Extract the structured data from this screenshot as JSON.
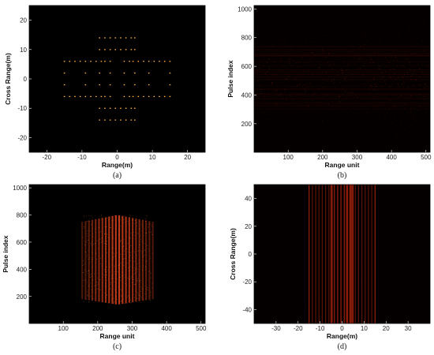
{
  "chart_data": [
    {
      "id": "a",
      "type": "scatter",
      "panel_label": "(a)",
      "xlabel": "Range(m)",
      "ylabel": "Cross Range(m)",
      "xlim": [
        -25,
        25
      ],
      "ylim": [
        -25,
        25
      ],
      "xticks": [
        -20,
        -10,
        0,
        10,
        20
      ],
      "yticks": [
        -20,
        -10,
        0,
        10,
        20
      ],
      "background": "#000000",
      "point_color": "#ffb040",
      "groups": [
        {
          "xs": [
            -5,
            -3.5,
            -2,
            -0.5,
            1,
            2.5,
            4,
            5
          ],
          "y": 14
        },
        {
          "xs": [
            -5,
            -3.5,
            -2,
            -0.5,
            1,
            2.5,
            4,
            5
          ],
          "y": 10
        },
        {
          "xs": [
            -15,
            -13.5,
            -12,
            -10.5,
            -9,
            -7.5,
            -6,
            -4.5,
            -3.5,
            -2,
            2,
            3.5,
            4.5,
            6,
            7.5,
            9,
            10.5,
            12,
            13.5,
            15
          ],
          "y": 6
        },
        {
          "xs": [
            -15,
            -9,
            -5,
            -2,
            2,
            5,
            9,
            15
          ],
          "y": 2
        },
        {
          "xs": [
            -15,
            -9,
            -5,
            -2,
            2,
            5,
            9,
            15
          ],
          "y": -2
        },
        {
          "xs": [
            -15,
            -13.5,
            -12,
            -10.5,
            -9,
            -7.5,
            -6,
            -4.5,
            -3.5,
            -2,
            2,
            3.5,
            4.5,
            6,
            7.5,
            9,
            10.5,
            12,
            13.5,
            15
          ],
          "y": -6
        },
        {
          "xs": [
            -5,
            -3.5,
            -2,
            -0.5,
            1,
            2.5,
            4,
            5
          ],
          "y": -10
        },
        {
          "xs": [
            -5,
            -3.5,
            -2,
            -0.5,
            1,
            2.5,
            4,
            5
          ],
          "y": -14
        }
      ]
    },
    {
      "id": "b",
      "type": "heatmap",
      "panel_label": "(b)",
      "xlabel": "Range unit",
      "ylabel": "Pulse index",
      "xlim": [
        1,
        512
      ],
      "ylim": [
        1,
        1024
      ],
      "xticks": [
        100,
        200,
        300,
        400,
        500
      ],
      "yticks": [
        200,
        400,
        600,
        800,
        1000
      ],
      "background": "#050000",
      "color": "#c42a10"
    },
    {
      "id": "c",
      "type": "heatmap",
      "panel_label": "(c)",
      "xlabel": "Range unit",
      "ylabel": "Pulse index",
      "xlim": [
        1,
        512
      ],
      "ylim": [
        1,
        1024
      ],
      "xticks": [
        100,
        200,
        300,
        400,
        500
      ],
      "yticks": [
        200,
        400,
        600,
        800,
        1000
      ],
      "background": "#000000",
      "color": "#d8401a",
      "band_x_range": [
        155,
        360
      ],
      "stripe_count": 22
    },
    {
      "id": "d",
      "type": "heatmap",
      "panel_label": "(d)",
      "xlabel": "Range(m)",
      "ylabel": "Cross Range(m)",
      "xlim": [
        -40,
        40
      ],
      "ylim": [
        -50,
        50
      ],
      "xticks": [
        -30,
        -20,
        -10,
        0,
        10,
        20,
        30
      ],
      "yticks": [
        -40,
        -20,
        0,
        20,
        40
      ],
      "background": "#050000",
      "color": "#c82a10",
      "lines_x": [
        -15,
        -13.5,
        -12,
        -10.5,
        -9,
        -7.5,
        -6,
        -5,
        -4.5,
        -3.5,
        -2,
        -0.5,
        1,
        2,
        2.5,
        3.5,
        4,
        4.5,
        5,
        6,
        7.5,
        9,
        10.5,
        12,
        13.5,
        15
      ]
    }
  ]
}
